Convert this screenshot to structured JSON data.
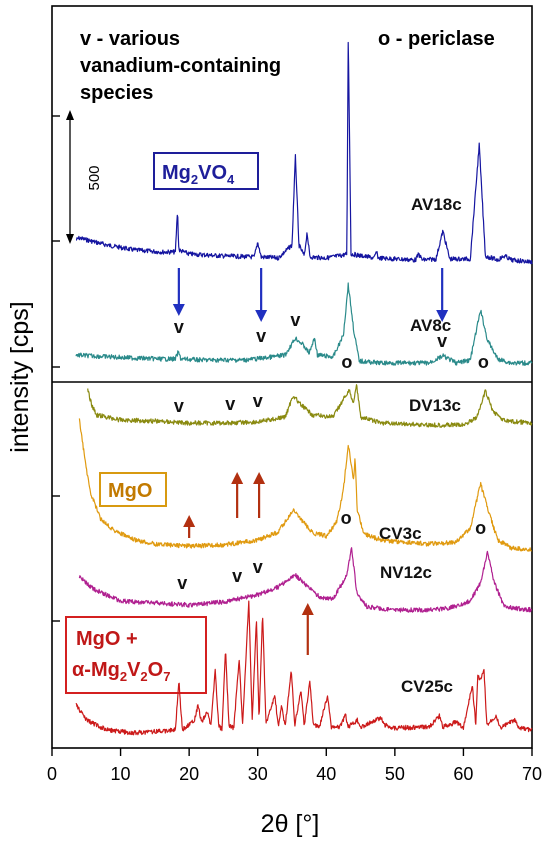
{
  "chart_data": {
    "type": "line",
    "xlabel": "2θ [°]",
    "ylabel": "intensity [cps]",
    "xlim": [
      0,
      70
    ],
    "xticks": [
      0,
      10,
      20,
      30,
      40,
      50,
      60,
      70
    ],
    "scale_bar_label": "500",
    "legend_text": {
      "v": "v - various",
      "v2": "vanadium-containing",
      "v3": "species",
      "o": "o - periclase"
    },
    "phase_boxes": {
      "mg2vo4": {
        "main": "Mg",
        "sub1": "2",
        "mid": "VO",
        "sub2": "4",
        "color": "#1e1e9a"
      },
      "mgo": {
        "text": "MgO",
        "color": "#d89a10"
      },
      "mgo_mgv": {
        "line1": "MgO +",
        "line2_a": "α-Mg",
        "sub1": "2",
        "mid": "V",
        "sub2": "2",
        "end": "O",
        "sub3": "7",
        "color": "#d42020"
      }
    },
    "series": [
      {
        "name": "AV18c",
        "color": "#1515a0",
        "baseline": 240,
        "points": [
          [
            3.5,
            0
          ],
          [
            4,
            2
          ],
          [
            8,
            -5
          ],
          [
            12,
            -10
          ],
          [
            16,
            -12
          ],
          [
            18,
            -12
          ],
          [
            18.3,
            30
          ],
          [
            18.5,
            -10
          ],
          [
            20,
            -14
          ],
          [
            25,
            -16
          ],
          [
            29.5,
            -17
          ],
          [
            30,
            -2
          ],
          [
            30.5,
            -17
          ],
          [
            33,
            -18
          ],
          [
            35,
            -5
          ],
          [
            35.5,
            85
          ],
          [
            36,
            -5
          ],
          [
            36.8,
            -16
          ],
          [
            37.2,
            8
          ],
          [
            37.6,
            -17
          ],
          [
            40,
            -18
          ],
          [
            42.5,
            -15
          ],
          [
            43,
            -14
          ],
          [
            43.2,
            210
          ],
          [
            43.6,
            -14
          ],
          [
            47,
            -18
          ],
          [
            47.3,
            -12
          ],
          [
            47.6,
            -18
          ],
          [
            53,
            -20
          ],
          [
            53.5,
            -14
          ],
          [
            54,
            -20
          ],
          [
            56,
            -19
          ],
          [
            57,
            9
          ],
          [
            58,
            -19
          ],
          [
            61,
            -19
          ],
          [
            62.3,
            95
          ],
          [
            63.2,
            -16
          ],
          [
            65,
            -20
          ],
          [
            66,
            -16
          ],
          [
            67,
            -20
          ],
          [
            70,
            -22
          ]
        ]
      },
      {
        "name": "AV8c",
        "color": "#2a8a8a",
        "baseline": 355,
        "points": [
          [
            3.5,
            0
          ],
          [
            6,
            -1
          ],
          [
            12,
            -3
          ],
          [
            16,
            -4
          ],
          [
            18,
            -4
          ],
          [
            18.4,
            3
          ],
          [
            18.8,
            -4
          ],
          [
            22,
            -5
          ],
          [
            28,
            -5
          ],
          [
            31,
            -3
          ],
          [
            34,
            0
          ],
          [
            35.5,
            17
          ],
          [
            36.5,
            11
          ],
          [
            37.5,
            2
          ],
          [
            38.3,
            17
          ],
          [
            38.7,
            0
          ],
          [
            41,
            -2
          ],
          [
            42.5,
            20
          ],
          [
            43.2,
            71
          ],
          [
            44,
            25
          ],
          [
            44.8,
            -6
          ],
          [
            48,
            -8
          ],
          [
            55,
            -8
          ],
          [
            57,
            -1
          ],
          [
            59,
            -8
          ],
          [
            61,
            -5
          ],
          [
            62.5,
            45
          ],
          [
            63.5,
            15
          ],
          [
            65,
            -4
          ],
          [
            67,
            -8
          ],
          [
            70,
            -8
          ]
        ]
      },
      {
        "name": "DV13c",
        "color": "#8a8a10",
        "baseline": 415,
        "points": [
          [
            5.2,
            25
          ],
          [
            5.8,
            10
          ],
          [
            6.5,
            0
          ],
          [
            10,
            -5
          ],
          [
            15,
            -6
          ],
          [
            20,
            -8
          ],
          [
            25,
            -8
          ],
          [
            30,
            -7
          ],
          [
            34,
            -2
          ],
          [
            35.2,
            20
          ],
          [
            36,
            12
          ],
          [
            38,
            0
          ],
          [
            41,
            -2
          ],
          [
            43.3,
            25
          ],
          [
            44,
            12
          ],
          [
            44.4,
            32
          ],
          [
            45,
            -2
          ],
          [
            48,
            -8
          ],
          [
            55,
            -10
          ],
          [
            60,
            -10
          ],
          [
            62,
            -2
          ],
          [
            63.2,
            24
          ],
          [
            64.3,
            4
          ],
          [
            66,
            -6
          ],
          [
            70,
            -8
          ]
        ]
      },
      {
        "name": "CV3c",
        "color": "#e09a10",
        "baseline": 550,
        "points": [
          [
            4,
            130
          ],
          [
            4.5,
            105
          ],
          [
            5.5,
            60
          ],
          [
            7,
            32
          ],
          [
            9,
            20
          ],
          [
            12,
            10
          ],
          [
            15,
            6
          ],
          [
            20,
            4
          ],
          [
            25,
            5
          ],
          [
            30,
            10
          ],
          [
            33,
            18
          ],
          [
            34.5,
            33
          ],
          [
            35.2,
            40
          ],
          [
            36,
            33
          ],
          [
            38,
            17
          ],
          [
            40,
            14
          ],
          [
            41.5,
            28
          ],
          [
            42.5,
            60
          ],
          [
            43.2,
            106
          ],
          [
            44,
            70
          ],
          [
            44.2,
            92
          ],
          [
            44.5,
            40
          ],
          [
            45.5,
            16
          ],
          [
            48,
            10
          ],
          [
            55,
            6
          ],
          [
            59,
            8
          ],
          [
            61,
            22
          ],
          [
            62.5,
            66
          ],
          [
            63.5,
            42
          ],
          [
            65,
            10
          ],
          [
            67,
            2
          ],
          [
            70,
            0
          ]
        ]
      },
      {
        "name": "NV12c",
        "color": "#b02090",
        "baseline": 605,
        "points": [
          [
            4,
            28
          ],
          [
            6,
            16
          ],
          [
            10,
            4
          ],
          [
            15,
            2
          ],
          [
            20,
            0
          ],
          [
            25,
            3
          ],
          [
            30,
            10
          ],
          [
            33,
            18
          ],
          [
            35.5,
            30
          ],
          [
            37,
            20
          ],
          [
            39,
            8
          ],
          [
            41,
            6
          ],
          [
            43,
            30
          ],
          [
            43.7,
            57
          ],
          [
            44.5,
            10
          ],
          [
            46,
            -2
          ],
          [
            50,
            -5
          ],
          [
            55,
            -5
          ],
          [
            58,
            -3
          ],
          [
            61,
            4
          ],
          [
            62.5,
            22
          ],
          [
            63.5,
            53
          ],
          [
            64.5,
            22
          ],
          [
            66,
            -2
          ],
          [
            70,
            -5
          ]
        ]
      },
      {
        "name": "CV25c",
        "color": "#cc1a1a",
        "baseline": 730,
        "points": [
          [
            3.5,
            25
          ],
          [
            5,
            10
          ],
          [
            8,
            0
          ],
          [
            12,
            -3
          ],
          [
            14,
            -2
          ],
          [
            18,
            0
          ],
          [
            18.5,
            50
          ],
          [
            19,
            0
          ],
          [
            20.8,
            10
          ],
          [
            21.3,
            25
          ],
          [
            21.8,
            8
          ],
          [
            22.6,
            18
          ],
          [
            23.2,
            5
          ],
          [
            23.8,
            60
          ],
          [
            24.3,
            5
          ],
          [
            24.8,
            0
          ],
          [
            25.3,
            80
          ],
          [
            25.8,
            5
          ],
          [
            26.5,
            2
          ],
          [
            27.3,
            70
          ],
          [
            27.8,
            5
          ],
          [
            28.7,
            130
          ],
          [
            29.2,
            8
          ],
          [
            29.8,
            112
          ],
          [
            30.2,
            8
          ],
          [
            30.7,
            118
          ],
          [
            31.2,
            6
          ],
          [
            32.5,
            35
          ],
          [
            33,
            3
          ],
          [
            33.5,
            25
          ],
          [
            34,
            3
          ],
          [
            34.9,
            60
          ],
          [
            35.4,
            4
          ],
          [
            36.3,
            40
          ],
          [
            36.8,
            4
          ],
          [
            37.6,
            50
          ],
          [
            38.1,
            5
          ],
          [
            39,
            3
          ],
          [
            40.2,
            35
          ],
          [
            40.7,
            3
          ],
          [
            42,
            3
          ],
          [
            42.8,
            15
          ],
          [
            43.2,
            3
          ],
          [
            44.5,
            10
          ],
          [
            45.1,
            3
          ],
          [
            46.5,
            8
          ],
          [
            48,
            12
          ],
          [
            48.5,
            5
          ],
          [
            50,
            2
          ],
          [
            55,
            3
          ],
          [
            56.5,
            14
          ],
          [
            57,
            3
          ],
          [
            59,
            8
          ],
          [
            60,
            2
          ],
          [
            61.3,
            45
          ],
          [
            61.8,
            5
          ],
          [
            62.1,
            55
          ],
          [
            62.5,
            50
          ],
          [
            63,
            60
          ],
          [
            63.4,
            5
          ],
          [
            64.8,
            15
          ],
          [
            65.3,
            2
          ],
          [
            67.5,
            10
          ],
          [
            68,
            2
          ],
          [
            70,
            0
          ]
        ]
      }
    ],
    "peak_markers": [
      {
        "text": "v",
        "x": 18.5,
        "y": 333
      },
      {
        "text": "v",
        "x": 30.5,
        "y": 342
      },
      {
        "text": "v",
        "x": 35.5,
        "y": 326
      },
      {
        "text": "o",
        "x": 43.0,
        "y": 368
      },
      {
        "text": "v",
        "x": 56.9,
        "y": 347
      },
      {
        "text": "o",
        "x": 62.9,
        "y": 368
      },
      {
        "text": "v",
        "x": 18.5,
        "y": 412
      },
      {
        "text": "v",
        "x": 26.0,
        "y": 410
      },
      {
        "text": "v",
        "x": 30.0,
        "y": 407
      },
      {
        "text": "o",
        "x": 42.9,
        "y": 524
      },
      {
        "text": "o",
        "x": 62.5,
        "y": 534
      },
      {
        "text": "v",
        "x": 19.0,
        "y": 589
      },
      {
        "text": "v",
        "x": 27.0,
        "y": 582
      },
      {
        "text": "v",
        "x": 30.0,
        "y": 573
      }
    ],
    "arrows": [
      {
        "x": 18.5,
        "from": 268,
        "to": 316,
        "color": "#2030c0"
      },
      {
        "x": 30.5,
        "from": 268,
        "to": 322,
        "color": "#2030c0"
      },
      {
        "x": 56.9,
        "from": 268,
        "to": 322,
        "color": "#2030c0"
      },
      {
        "x": 20.0,
        "from": 538,
        "to": 515,
        "color": "#b23010"
      },
      {
        "x": 27.0,
        "from": 518,
        "to": 472,
        "color": "#b23010"
      },
      {
        "x": 30.2,
        "from": 518,
        "to": 472,
        "color": "#b23010"
      },
      {
        "x": 37.3,
        "from": 655,
        "to": 603,
        "color": "#b23010"
      }
    ]
  }
}
